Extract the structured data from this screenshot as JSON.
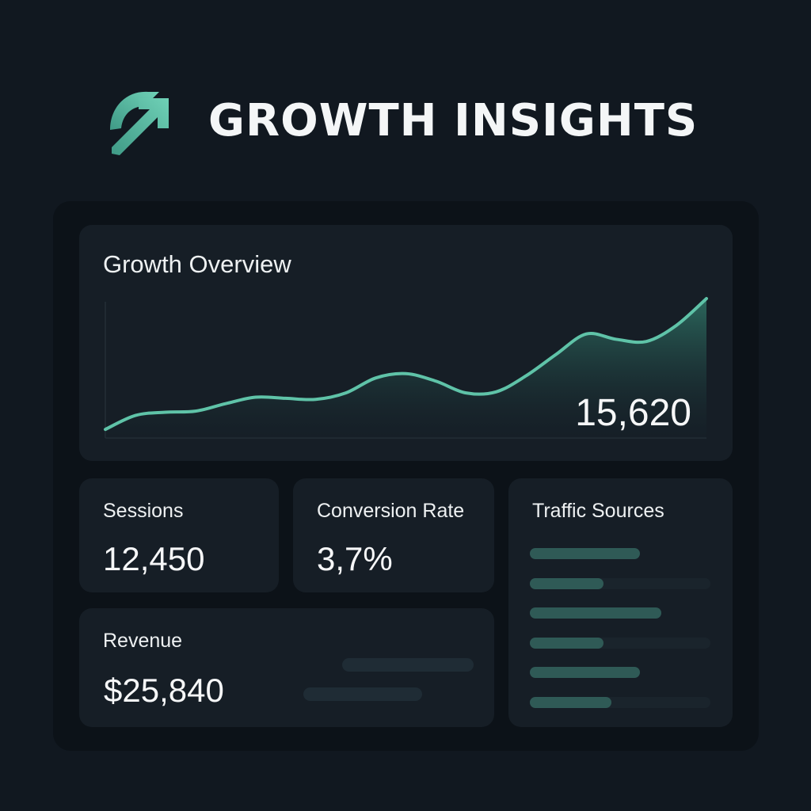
{
  "brand": {
    "title": "GROWTH INSIGHTS",
    "logo_icon": "growth-arrow-icon",
    "accent_color": "#5fc3a8"
  },
  "overview": {
    "title": "Growth Overview",
    "value": "15,620"
  },
  "chart_data": {
    "type": "area",
    "title": "Growth Overview",
    "x": [
      0,
      1,
      2,
      3,
      4,
      5,
      6,
      7,
      8,
      9,
      10,
      11,
      12,
      13,
      14,
      15,
      16,
      17,
      18,
      19,
      20
    ],
    "series": [
      {
        "values": [
          8,
          21,
          24,
          25,
          32,
          38,
          37,
          36,
          42,
          56,
          60,
          53,
          42,
          43,
          58,
          78,
          97,
          92,
          90,
          105,
          130
        ]
      }
    ],
    "xlim": [
      0,
      20
    ],
    "ylim": [
      0,
      130
    ],
    "grid": false,
    "legend": "none",
    "line_color": "#5fc3a8"
  },
  "sessions": {
    "title": "Sessions",
    "value": "12,450"
  },
  "conversion": {
    "title": "Conversion Rate",
    "value": "3,7%"
  },
  "revenue": {
    "title": "Revenue",
    "value": "$25,840",
    "bars": [
      1.0,
      0.9
    ]
  },
  "traffic": {
    "title": "Traffic Sources",
    "sources": [
      {
        "level": 0.61
      },
      {
        "level": 0.41
      },
      {
        "level": 0.73
      },
      {
        "level": 0.41
      },
      {
        "level": 0.61
      },
      {
        "level": 0.45
      }
    ]
  }
}
